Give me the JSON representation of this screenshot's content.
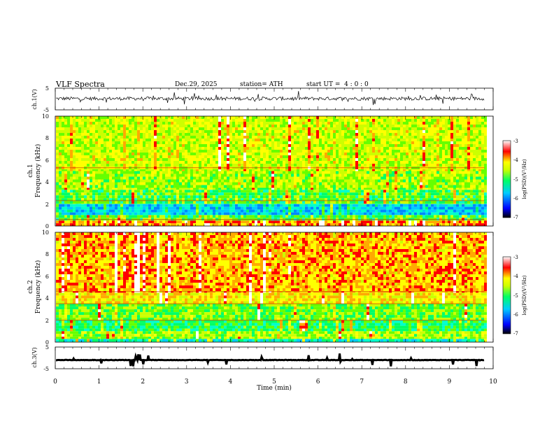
{
  "header": {
    "title": "VLF Spectra",
    "date": "Dec.29, 2025",
    "station": "station= ATH",
    "start_ut": "start UT =  4 : 0 : 0"
  },
  "chart_data": [
    {
      "type": "line",
      "name": "ch1-waveform",
      "ylabel": "ch.1(V)",
      "ylim": [
        -5,
        5
      ],
      "yticks": [
        "5",
        "-5"
      ],
      "baseline_v": 0.2,
      "color": "#000000"
    },
    {
      "type": "heatmap",
      "name": "ch1-spectrogram",
      "ylabel_line1": "ch.1",
      "ylabel_line2": "Frequency (kHz)",
      "ylim": [
        0,
        10
      ],
      "yticks": [
        "0",
        "2",
        "4",
        "6",
        "8",
        "10"
      ],
      "x_range_min": [
        0,
        9.8
      ],
      "bands": [
        {
          "from_khz": 0.0,
          "to_khz": 0.5,
          "level": 4.5
        },
        {
          "from_khz": 0.5,
          "to_khz": 1.0,
          "level": 2.8
        },
        {
          "from_khz": 1.0,
          "to_khz": 2.0,
          "level": 1.6
        },
        {
          "from_khz": 2.0,
          "to_khz": 3.3,
          "level": 2.8
        },
        {
          "from_khz": 3.3,
          "to_khz": 5.0,
          "level": 3.3
        },
        {
          "from_khz": 5.0,
          "to_khz": 10.0,
          "level": 3.6
        }
      ],
      "lines_khz": [
        5.3,
        2.3,
        0.6
      ],
      "colorbar": {
        "label": "log(PSD)(V²/Hz)",
        "ticks": [
          "-3",
          "-4",
          "-5",
          "-6",
          "-7"
        ],
        "range": [
          -7,
          -3
        ]
      }
    },
    {
      "type": "heatmap",
      "name": "ch2-spectrogram",
      "ylabel_line1": "ch.2",
      "ylabel_line2": "Frequency (kHz)",
      "ylim": [
        0,
        10
      ],
      "yticks": [
        "0",
        "2",
        "4",
        "6",
        "8",
        "10"
      ],
      "x_range_min": [
        0,
        9.8
      ],
      "bands": [
        {
          "from_khz": 0.0,
          "to_khz": 0.3,
          "level": 2.0
        },
        {
          "from_khz": 0.3,
          "to_khz": 1.0,
          "level": 3.3
        },
        {
          "from_khz": 1.0,
          "to_khz": 2.0,
          "level": 2.6
        },
        {
          "from_khz": 2.0,
          "to_khz": 3.5,
          "level": 3.0
        },
        {
          "from_khz": 3.5,
          "to_khz": 4.5,
          "level": 4.0
        },
        {
          "from_khz": 4.5,
          "to_khz": 10.0,
          "level": 4.4
        }
      ],
      "lines_khz": [
        4.6,
        3.5,
        2.0
      ],
      "colorbar": {
        "label": "log(PSD)(V²/Hz)",
        "ticks": [
          "-3",
          "-4",
          "-5",
          "-6",
          "-7"
        ],
        "range": [
          -7,
          -3
        ]
      }
    },
    {
      "type": "line",
      "name": "ch3-waveform",
      "ylabel": "ch.3(V)",
      "ylim": [
        -5,
        5
      ],
      "yticks": [
        "5",
        "-5"
      ],
      "baseline_v": -1.0,
      "color": "#000000"
    }
  ],
  "x_axis": {
    "label": "Time (min)",
    "range": [
      0,
      10
    ],
    "ticks": [
      "0",
      "1",
      "2",
      "3",
      "4",
      "5",
      "6",
      "7",
      "8",
      "9",
      "10"
    ]
  },
  "colors": {
    "scale": [
      "#000000",
      "#0000ff",
      "#00ccff",
      "#00ff66",
      "#ccff00",
      "#ffff00",
      "#ff0000",
      "#ffffff"
    ]
  }
}
